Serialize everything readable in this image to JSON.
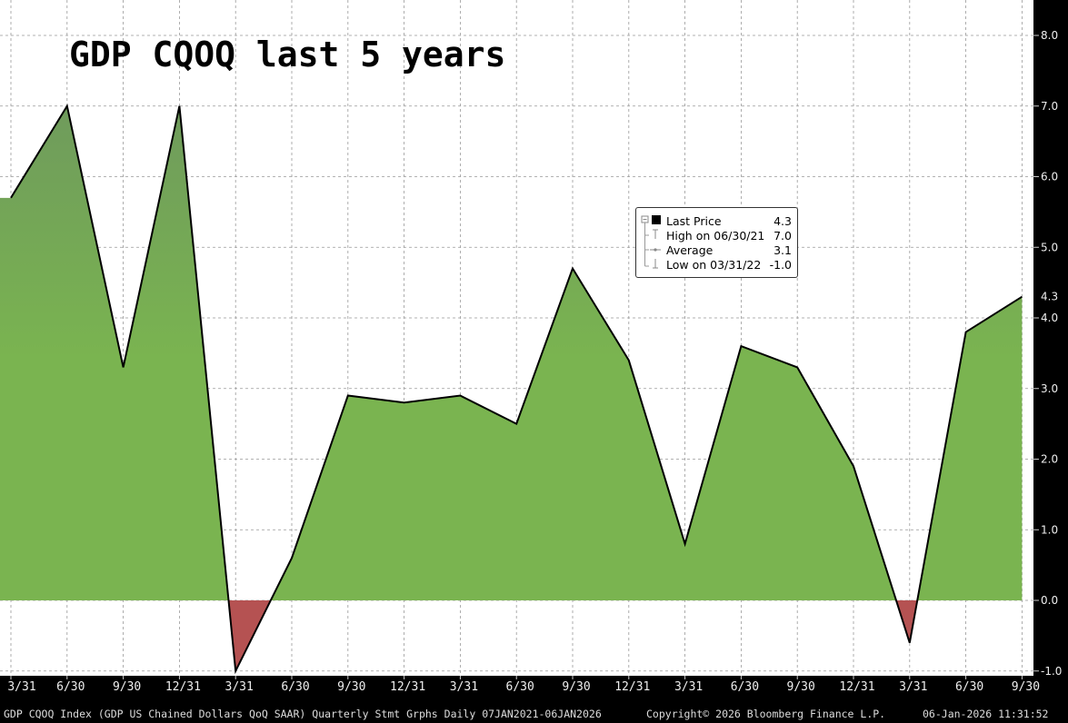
{
  "chart_data": {
    "type": "area",
    "title": "GDP CQOQ last 5 years",
    "x": [
      "3/31/21",
      "6/30/21",
      "9/30/21",
      "12/31/21",
      "3/31/22",
      "6/30/22",
      "9/30/22",
      "12/31/22",
      "3/31/23",
      "6/30/23",
      "9/30/23",
      "12/31/23",
      "3/31/24",
      "6/30/24",
      "9/30/24",
      "12/31/24",
      "3/31/25",
      "6/30/25",
      "9/30/25"
    ],
    "x_tick_labels": [
      "3/31",
      "6/30",
      "9/30",
      "12/31",
      "3/31",
      "6/30",
      "9/30",
      "12/31",
      "3/31",
      "6/30",
      "9/30",
      "12/31",
      "3/31",
      "6/30",
      "9/30",
      "12/31",
      "3/31",
      "6/30",
      "9/30"
    ],
    "values": [
      5.7,
      7.0,
      3.3,
      7.0,
      -1.0,
      0.6,
      2.9,
      2.8,
      2.9,
      2.5,
      4.7,
      3.4,
      0.8,
      3.6,
      3.3,
      1.9,
      -0.6,
      3.8,
      4.3
    ],
    "ylim": [
      -1.0,
      8.0
    ],
    "y_ticks": [
      "-1.0",
      "0.0",
      "1.0",
      "2.0",
      "3.0",
      "4.0",
      "5.0",
      "6.0",
      "7.0",
      "8.0"
    ],
    "y_axis_side": "right",
    "grid": true,
    "last_value_label": "4.3",
    "colors": {
      "positive": "#7ab450",
      "negative": "#b55252",
      "line": "#000000"
    },
    "legend": {
      "placement": "center-right",
      "items": [
        {
          "label": "Last Price",
          "value": "4.3"
        },
        {
          "label": "High on 06/30/21",
          "value": "7.0"
        },
        {
          "label": "Average",
          "value": "3.1"
        },
        {
          "label": "Low on 03/31/22",
          "value": "-1.0"
        }
      ]
    }
  },
  "footer": {
    "description": "GDP CQOQ Index (GDP US Chained Dollars QoQ SAAR) Quarterly Stmt Grphs Daily 07JAN2021-06JAN2026",
    "copyright": "Copyright© 2026 Bloomberg Finance L.P.",
    "timestamp": "06-Jan-2026 11:31:52"
  }
}
